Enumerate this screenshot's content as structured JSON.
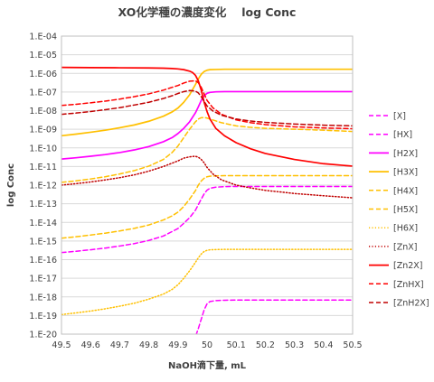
{
  "chart_data": {
    "type": "line",
    "title": "XO化学種の濃度変化 　log Conc",
    "xlabel": "NaOH滴下量, mL",
    "ylabel": "log Conc",
    "xlim": [
      49.5,
      50.5
    ],
    "ylim": [
      -20,
      -4
    ],
    "y_scale": "log",
    "grid": true,
    "legend_position": "right",
    "x_ticks": [
      49.5,
      49.6,
      49.7,
      49.8,
      49.9,
      50,
      50.1,
      50.2,
      50.3,
      50.4,
      50.5
    ],
    "x_tick_labels": [
      "49.5",
      "49.6",
      "49.7",
      "49.8",
      "49.9",
      "50",
      "50.1",
      "50.2",
      "50.3",
      "50.4",
      "50.5"
    ],
    "y_ticks": [
      -4,
      -5,
      -6,
      -7,
      -8,
      -9,
      -10,
      -11,
      -12,
      -13,
      -14,
      -15,
      -16,
      -17,
      -18,
      -19,
      -20
    ],
    "y_tick_labels": [
      "1.E-04",
      "1.E-05",
      "1.E-06",
      "1.E-07",
      "1.E-08",
      "1.E-09",
      "1.E-10",
      "1.E-11",
      "1.E-12",
      "1.E-13",
      "1.E-14",
      "1.E-15",
      "1.E-16",
      "1.E-17",
      "1.E-18",
      "1.E-19",
      "1.E-20"
    ],
    "series": [
      {
        "name": "[X]",
        "color": "#FF00FF",
        "style": "dashed",
        "x": [
          49.9,
          49.92,
          49.95,
          49.97,
          49.98,
          49.99,
          50.0,
          50.01,
          50.03,
          50.06,
          50.1,
          50.2,
          50.3,
          50.4,
          50.5
        ],
        "y": [
          -22.6,
          -21.6,
          -20.6,
          -19.7,
          -19.2,
          -18.7,
          -18.37,
          -18.25,
          -18.2,
          -18.18,
          -18.17,
          -18.17,
          -18.17,
          -18.17,
          -18.17
        ]
      },
      {
        "name": "[HX]",
        "color": "#FF00FF",
        "style": "dashed",
        "x": [
          49.5,
          49.55,
          49.6,
          49.65,
          49.7,
          49.75,
          49.8,
          49.85,
          49.9,
          49.92,
          49.94,
          49.96,
          49.97,
          49.98,
          49.99,
          50.0,
          50.01,
          50.03,
          50.06,
          50.1,
          50.2,
          50.3,
          50.4,
          50.5
        ],
        "y": [
          -15.62,
          -15.55,
          -15.47,
          -15.38,
          -15.27,
          -15.14,
          -14.97,
          -14.73,
          -14.33,
          -14.05,
          -13.75,
          -13.35,
          -13.05,
          -12.75,
          -12.47,
          -12.27,
          -12.17,
          -12.11,
          -12.08,
          -12.07,
          -12.07,
          -12.07,
          -12.07,
          -12.07
        ]
      },
      {
        "name": "[H2X]",
        "color": "#FF00FF",
        "style": "solid",
        "x": [
          49.5,
          49.55,
          49.6,
          49.65,
          49.7,
          49.75,
          49.8,
          49.85,
          49.88,
          49.9,
          49.92,
          49.94,
          49.96,
          49.97,
          49.98,
          49.99,
          50.0,
          50.01,
          50.03,
          50.06,
          50.1,
          50.2,
          50.3,
          50.4,
          50.5
        ],
        "y": [
          -10.6,
          -10.53,
          -10.45,
          -10.36,
          -10.25,
          -10.11,
          -9.93,
          -9.67,
          -9.45,
          -9.23,
          -8.95,
          -8.6,
          -8.12,
          -7.8,
          -7.45,
          -7.2,
          -7.07,
          -7.02,
          -6.99,
          -6.98,
          -6.98,
          -6.98,
          -6.98,
          -6.98,
          -6.98
        ]
      },
      {
        "name": "[H3X]",
        "color": "#FFC000",
        "style": "solid",
        "x": [
          49.5,
          49.55,
          49.6,
          49.65,
          49.7,
          49.75,
          49.8,
          49.85,
          49.88,
          49.9,
          49.92,
          49.94,
          49.96,
          49.97,
          49.98,
          49.99,
          50.0,
          50.01,
          50.03,
          50.06,
          50.1,
          50.2,
          50.3,
          50.4,
          50.5
        ],
        "y": [
          -9.35,
          -9.26,
          -9.16,
          -9.05,
          -8.92,
          -8.77,
          -8.57,
          -8.3,
          -8.07,
          -7.86,
          -7.55,
          -7.15,
          -6.6,
          -6.3,
          -6.05,
          -5.9,
          -5.83,
          -5.8,
          -5.79,
          -5.78,
          -5.78,
          -5.78,
          -5.78,
          -5.78,
          -5.78
        ]
      },
      {
        "name": "[H4X]",
        "color": "#FFC000",
        "style": "dashed",
        "x": [
          49.5,
          49.55,
          49.6,
          49.65,
          49.7,
          49.75,
          49.8,
          49.85,
          49.88,
          49.9,
          49.92,
          49.94,
          49.96,
          49.97,
          49.98,
          49.99,
          50.0,
          50.01,
          50.03,
          50.06,
          50.1,
          50.2,
          50.3,
          50.4,
          50.5
        ],
        "y": [
          -14.85,
          -14.77,
          -14.68,
          -14.58,
          -14.46,
          -14.32,
          -14.14,
          -13.87,
          -13.65,
          -13.45,
          -13.15,
          -12.75,
          -12.3,
          -12.0,
          -11.78,
          -11.63,
          -11.55,
          -11.52,
          -11.5,
          -11.49,
          -11.49,
          -11.49,
          -11.49,
          -11.49,
          -11.49
        ]
      },
      {
        "name": "[H5X]",
        "color": "#FFC000",
        "style": "dashed",
        "x": [
          49.5,
          49.55,
          49.6,
          49.65,
          49.7,
          49.75,
          49.8,
          49.85,
          49.88,
          49.9,
          49.92,
          49.94,
          49.96,
          49.97,
          49.98,
          49.99,
          50.0,
          50.02,
          50.05,
          50.1,
          50.15,
          50.2,
          50.3,
          50.4,
          50.5
        ],
        "y": [
          -11.85,
          -11.77,
          -11.67,
          -11.55,
          -11.4,
          -11.22,
          -10.98,
          -10.62,
          -10.25,
          -9.9,
          -9.45,
          -9.0,
          -8.6,
          -8.45,
          -8.38,
          -8.37,
          -8.4,
          -8.5,
          -8.65,
          -8.82,
          -8.9,
          -8.95,
          -9.0,
          -9.05,
          -9.12
        ]
      },
      {
        "name": "[H6X]",
        "color": "#FFC000",
        "style": "dotted",
        "x": [
          49.5,
          49.55,
          49.6,
          49.65,
          49.7,
          49.75,
          49.8,
          49.85,
          49.88,
          49.9,
          49.92,
          49.94,
          49.96,
          49.97,
          49.98,
          49.99,
          50.0,
          50.01,
          50.03,
          50.06,
          50.1,
          50.2,
          50.3,
          50.4,
          50.5
        ],
        "y": [
          -18.95,
          -18.86,
          -18.76,
          -18.64,
          -18.5,
          -18.34,
          -18.12,
          -17.85,
          -17.6,
          -17.35,
          -17.0,
          -16.6,
          -16.15,
          -15.9,
          -15.7,
          -15.56,
          -15.5,
          -15.47,
          -15.46,
          -15.45,
          -15.45,
          -15.45,
          -15.45,
          -15.45,
          -15.45
        ]
      },
      {
        "name": "[ZnX]",
        "color": "#C00000",
        "style": "dotted",
        "x": [
          49.5,
          49.55,
          49.6,
          49.65,
          49.7,
          49.75,
          49.8,
          49.85,
          49.88,
          49.9,
          49.92,
          49.94,
          49.96,
          49.97,
          49.98,
          49.99,
          50.0,
          50.02,
          50.05,
          50.1,
          50.15,
          50.2,
          50.3,
          50.4,
          50.5
        ],
        "y": [
          -12.0,
          -11.92,
          -11.83,
          -11.72,
          -11.6,
          -11.45,
          -11.25,
          -11.0,
          -10.82,
          -10.7,
          -10.55,
          -10.48,
          -10.45,
          -10.5,
          -10.62,
          -10.8,
          -11.05,
          -11.4,
          -11.72,
          -12.0,
          -12.15,
          -12.28,
          -12.45,
          -12.57,
          -12.68
        ]
      },
      {
        "name": "[Zn2X]",
        "color": "#FF0000",
        "style": "solid",
        "x": [
          49.5,
          49.6,
          49.7,
          49.8,
          49.85,
          49.88,
          49.9,
          49.92,
          49.94,
          49.95,
          49.96,
          49.97,
          49.98,
          49.99,
          50.0,
          50.01,
          50.03,
          50.06,
          50.1,
          50.15,
          50.2,
          50.3,
          50.4,
          50.5
        ],
        "y": [
          -5.68,
          -5.69,
          -5.7,
          -5.71,
          -5.72,
          -5.74,
          -5.76,
          -5.8,
          -5.88,
          -5.95,
          -6.1,
          -6.4,
          -6.9,
          -7.55,
          -8.05,
          -8.45,
          -8.95,
          -9.35,
          -9.72,
          -10.05,
          -10.3,
          -10.62,
          -10.85,
          -10.98
        ]
      },
      {
        "name": "[ZnHX]",
        "color": "#FF0000",
        "style": "dashed",
        "x": [
          49.5,
          49.55,
          49.6,
          49.65,
          49.7,
          49.75,
          49.8,
          49.85,
          49.88,
          49.9,
          49.92,
          49.94,
          49.96,
          49.97,
          49.98,
          49.99,
          50.0,
          50.02,
          50.05,
          50.1,
          50.15,
          50.2,
          50.3,
          50.4,
          50.5
        ],
        "y": [
          -7.72,
          -7.66,
          -7.58,
          -7.49,
          -7.38,
          -7.25,
          -7.1,
          -6.9,
          -6.75,
          -6.65,
          -6.52,
          -6.42,
          -6.4,
          -6.5,
          -6.75,
          -7.1,
          -7.45,
          -7.85,
          -8.2,
          -8.5,
          -8.65,
          -8.75,
          -8.87,
          -8.93,
          -8.97
        ]
      },
      {
        "name": "[ZnH2X]",
        "color": "#C00000",
        "style": "dashed",
        "x": [
          49.5,
          49.55,
          49.6,
          49.65,
          49.7,
          49.75,
          49.8,
          49.85,
          49.88,
          49.9,
          49.92,
          49.94,
          49.96,
          49.97,
          49.98,
          49.99,
          50.0,
          50.02,
          50.05,
          50.1,
          50.15,
          50.2,
          50.3,
          50.4,
          50.5
        ],
        "y": [
          -8.2,
          -8.13,
          -8.05,
          -7.95,
          -7.84,
          -7.7,
          -7.55,
          -7.35,
          -7.2,
          -7.08,
          -6.98,
          -6.92,
          -6.95,
          -7.05,
          -7.25,
          -7.5,
          -7.75,
          -8.02,
          -8.25,
          -8.45,
          -8.56,
          -8.63,
          -8.72,
          -8.78,
          -8.82
        ]
      }
    ]
  }
}
